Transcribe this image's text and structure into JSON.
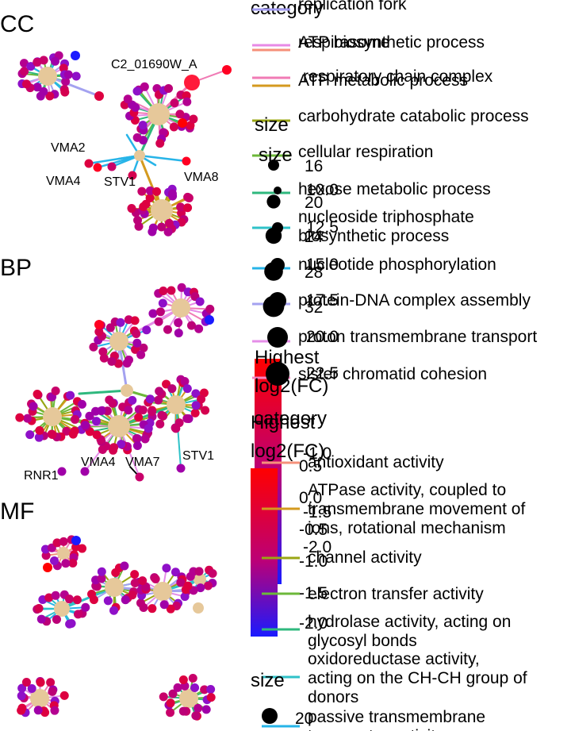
{
  "panels": {
    "cc": "CC",
    "bp": "BP",
    "mf": "MF"
  },
  "node_labels": {
    "cc": [
      "C2_01690W_A",
      "VMA2",
      "VMA4",
      "STV1",
      "VMA8"
    ],
    "bp": [
      "VMA4",
      "VMA7",
      "STV1",
      "RNR1"
    ]
  },
  "legend_cc": {
    "category_title": "category",
    "categories": [
      {
        "label": "replication fork",
        "color": "#a29bf0"
      },
      {
        "label": "respirasome",
        "color": "#e78ae6"
      },
      {
        "label": "ATP biosynthetic process",
        "color": "#f5907a"
      },
      {
        "label": "respiratory chain complex",
        "color": "#f07bb5"
      },
      {
        "label": "ATP metabolic process",
        "color": "#d49a1f"
      },
      {
        "label": "carbohydrate catabolic process",
        "color": "#9aa614"
      },
      {
        "label": "cellular respiration",
        "color": "#6cb83a"
      },
      {
        "label": "hexose metabolic process",
        "color": "#2fb87e"
      },
      {
        "label": "nucleoside triphosphate biosynthetic process",
        "color": "#2fc2c8"
      },
      {
        "label": "nucleotide phosphorylation",
        "color": "#27b4e8"
      },
      {
        "label": "protein-DNA complex assembly",
        "color": "#a4a2f0"
      },
      {
        "label": "proton transmembrane transport",
        "color": "#e58ee8"
      },
      {
        "label": "sister chromatid cohesion",
        "color": "#f585c0"
      }
    ],
    "size_title_a": "size",
    "size_title_b": "size",
    "sizes_a": [
      "16",
      "20",
      "24",
      "28",
      "32"
    ],
    "sizes_b": [
      "10.0",
      "12.5",
      "15.0",
      "17.5",
      "20.0",
      "22.5"
    ],
    "color_title": "Highest log2(FC)",
    "color_ticks": [
      "0.5",
      "0.0",
      "-0.5",
      "-1.0",
      "-1.5",
      "-2.0"
    ]
  },
  "legend_mf": {
    "category_title": "category",
    "color_title": "Highest log2(FC)",
    "color_ticks": [
      "-1.0",
      "-1.5",
      "-2.0"
    ],
    "categories": [
      {
        "label": "antioxidant activity",
        "color": "#f5907a"
      },
      {
        "label": "ATPase activity, coupled to transmembrane movement of ions, rotational mechanism",
        "color": "#d49a1f"
      },
      {
        "label": "channel activity",
        "color": "#9aa614"
      },
      {
        "label": "electron transfer activity",
        "color": "#6cb83a"
      },
      {
        "label": "hydrolase activity, acting on glycosyl bonds",
        "color": "#2fb87e"
      },
      {
        "label": "oxidoreductase activity, acting on the CH-CH group of donors",
        "color": "#2fc2c8"
      },
      {
        "label": "passive transmembrane transporter activity",
        "color": "#27b4e8"
      }
    ],
    "size_title": "size",
    "sizes": [
      "20"
    ]
  },
  "colors": {
    "hub": "#e6c89a",
    "high": "#ff0000",
    "mid": "#bb0077",
    "low": "#1a1aff"
  }
}
